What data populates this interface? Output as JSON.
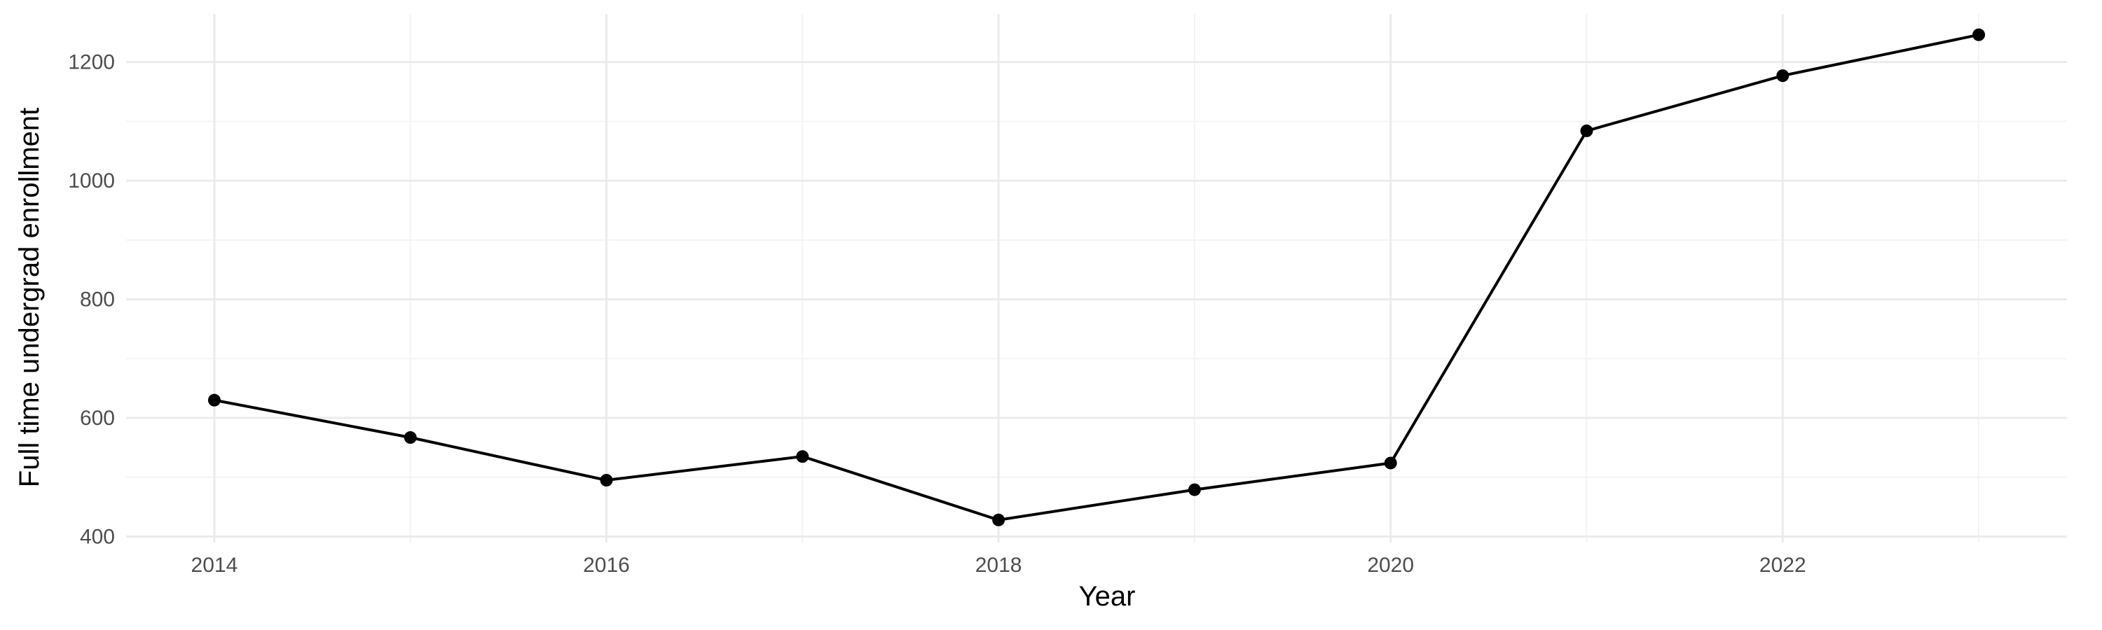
{
  "chart_data": {
    "type": "line",
    "xlabel": "Year",
    "ylabel": "Full time undergrad enrollment",
    "x": [
      2014,
      2015,
      2016,
      2017,
      2018,
      2019,
      2020,
      2021,
      2022,
      2023
    ],
    "series": [
      {
        "values": [
          630,
          567,
          495,
          535,
          428,
          479,
          524,
          1084,
          1177,
          1246
        ]
      }
    ],
    "xlim": [
      2013.55,
      2023.45
    ],
    "ylim": [
      390,
      1281
    ],
    "x_ticks": [
      2014,
      2016,
      2018,
      2020,
      2022
    ],
    "y_ticks": [
      400,
      600,
      800,
      1000,
      1200
    ],
    "x_tick_labels": [
      "2014",
      "2016",
      "2018",
      "2020",
      "2022"
    ],
    "y_tick_labels": [
      "400",
      "600",
      "800",
      "1000",
      "1200"
    ],
    "grid": true,
    "colors": {
      "line": "#000000",
      "point": "#000000",
      "grid": "#ebebeb",
      "background": "#ffffff"
    }
  }
}
